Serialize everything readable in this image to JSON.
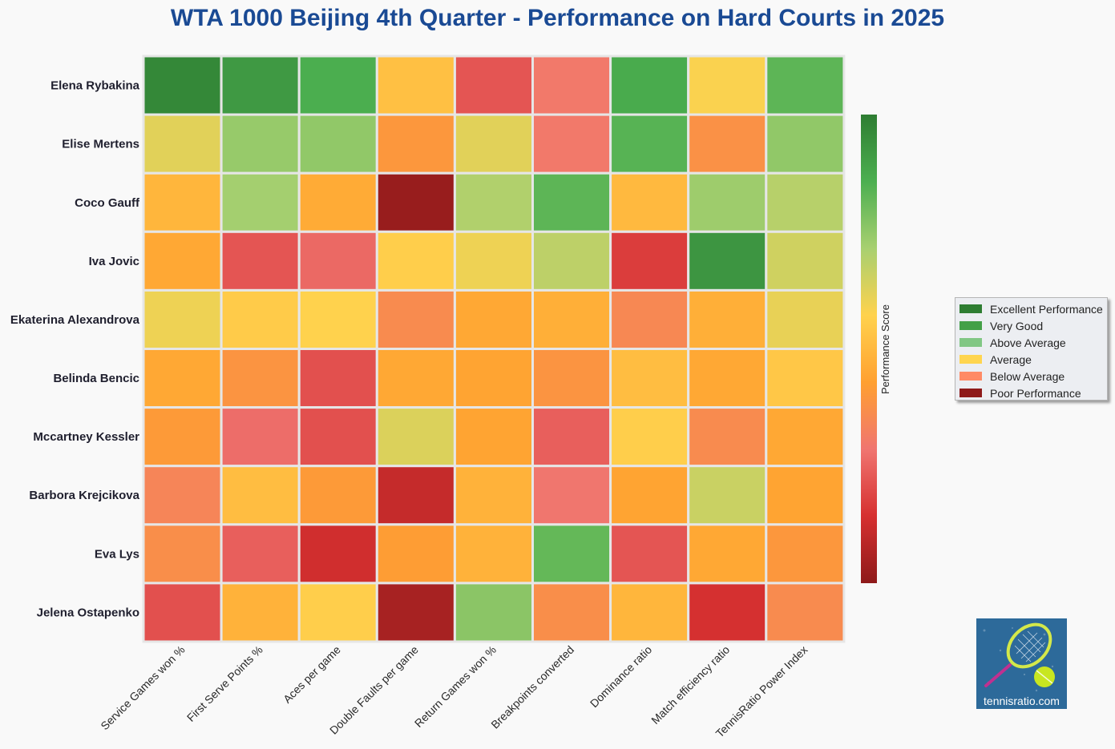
{
  "title": "WTA 1000 Beijing 4th Quarter - Performance on Hard Courts in 2025",
  "chart_data": {
    "type": "heatmap",
    "title": "WTA 1000 Beijing 4th Quarter - Performance on Hard Courts in 2025",
    "rows": [
      "Elena Rybakina",
      "Elise Mertens",
      "Coco Gauff",
      "Iva Jovic",
      "Ekaterina Alexandrova",
      "Belinda Bencic",
      "Mccartney Kessler",
      "Barbora Krejcikova",
      "Eva Lys",
      "Jelena Ostapenko"
    ],
    "columns": [
      "Service Games won %",
      "First Serve Points %",
      "Aces per game",
      "Double Faults per game",
      "Return Games won %",
      "Breakpoints converted",
      "Dominance ratio",
      "Match efficiency ratio",
      "TennisRatio Power Index"
    ],
    "values": [
      [
        0.97,
        0.92,
        0.86,
        0.52,
        0.22,
        0.3,
        0.87,
        0.58,
        0.83
      ],
      [
        0.62,
        0.74,
        0.75,
        0.4,
        0.62,
        0.3,
        0.84,
        0.38,
        0.75
      ],
      [
        0.49,
        0.72,
        0.46,
        0.02,
        0.7,
        0.83,
        0.5,
        0.73,
        0.69
      ],
      [
        0.45,
        0.22,
        0.26,
        0.56,
        0.6,
        0.68,
        0.17,
        0.93,
        0.65
      ],
      [
        0.6,
        0.55,
        0.57,
        0.36,
        0.45,
        0.47,
        0.35,
        0.47,
        0.61
      ],
      [
        0.45,
        0.39,
        0.21,
        0.45,
        0.44,
        0.39,
        0.51,
        0.45,
        0.54
      ],
      [
        0.41,
        0.27,
        0.21,
        0.63,
        0.44,
        0.24,
        0.56,
        0.36,
        0.45
      ],
      [
        0.34,
        0.51,
        0.41,
        0.11,
        0.48,
        0.29,
        0.44,
        0.66,
        0.44
      ],
      [
        0.37,
        0.24,
        0.13,
        0.42,
        0.48,
        0.82,
        0.22,
        0.45,
        0.4
      ],
      [
        0.21,
        0.48,
        0.56,
        0.05,
        0.76,
        0.37,
        0.49,
        0.14,
        0.36
      ]
    ],
    "colorbar": {
      "label": "Performance Score",
      "colors": [
        "#8e1a1a",
        "#d63030",
        "#f07570",
        "#ffa030",
        "#ffd24d",
        "#a8d070",
        "#4caf50",
        "#2e7d32"
      ]
    },
    "legend": [
      {
        "label": "Excellent Performance",
        "color": "#2e7d32"
      },
      {
        "label": "Very Good",
        "color": "#43a047"
      },
      {
        "label": "Above Average",
        "color": "#81c784"
      },
      {
        "label": "Average",
        "color": "#ffd54f"
      },
      {
        "label": "Below Average",
        "color": "#ff8a65"
      },
      {
        "label": "Poor Performance",
        "color": "#8e1a1a"
      }
    ],
    "legend_placement": "right"
  },
  "logo": {
    "text": "tennisratio.com",
    "colors": {
      "background": "#2d6a9a",
      "ball": "#c8e620",
      "racket": "#d4e84a"
    }
  }
}
